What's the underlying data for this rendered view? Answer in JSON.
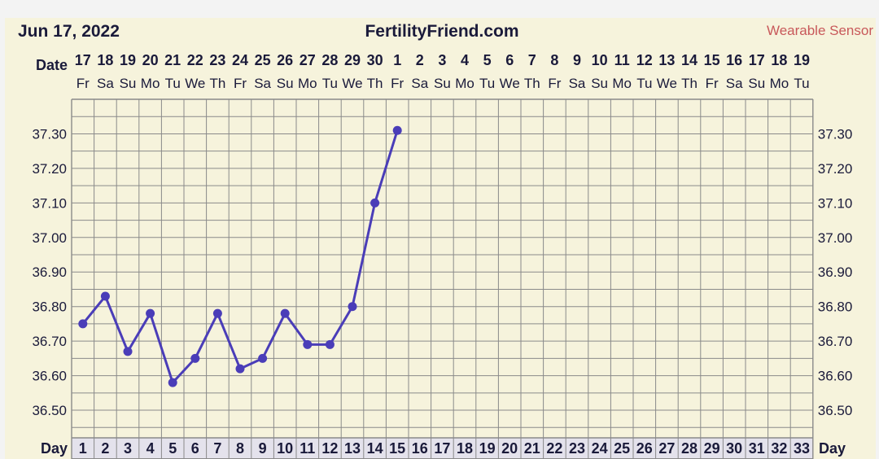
{
  "header": {
    "date": "Jun 17, 2022",
    "site": "FertilityFriend.com",
    "sensor": "Wearable Sensor"
  },
  "labels": {
    "date_row": "Date",
    "day_row_left": "Day",
    "day_row_right": "Day"
  },
  "colors": {
    "background": "#f6f3dc",
    "page": "#f3f3f3",
    "grid": "#8a8a8a",
    "line": "#4a3db8",
    "text": "#1a1a3a",
    "sensor": "#c8585a",
    "day_cell": "#e4e2ec"
  },
  "chart_data": {
    "type": "line",
    "dates": [
      "17",
      "18",
      "19",
      "20",
      "21",
      "22",
      "23",
      "24",
      "25",
      "26",
      "27",
      "28",
      "29",
      "30",
      "1",
      "2",
      "3",
      "4",
      "5",
      "6",
      "7",
      "8",
      "9",
      "10",
      "11",
      "12",
      "13",
      "14",
      "15",
      "16",
      "17",
      "18",
      "19"
    ],
    "weekdays": [
      "Fr",
      "Sa",
      "Su",
      "Mo",
      "Tu",
      "We",
      "Th",
      "Fr",
      "Sa",
      "Su",
      "Mo",
      "Tu",
      "We",
      "Th",
      "Fr",
      "Sa",
      "Su",
      "Mo",
      "Tu",
      "We",
      "Th",
      "Fr",
      "Sa",
      "Su",
      "Mo",
      "Tu",
      "We",
      "Th",
      "Fr",
      "Sa",
      "Su",
      "Mo",
      "Tu"
    ],
    "cycle_days": [
      "1",
      "2",
      "3",
      "4",
      "5",
      "6",
      "7",
      "8",
      "9",
      "10",
      "11",
      "12",
      "13",
      "14",
      "15",
      "16",
      "17",
      "18",
      "19",
      "20",
      "21",
      "22",
      "23",
      "24",
      "25",
      "26",
      "27",
      "28",
      "29",
      "30",
      "31",
      "32",
      "33"
    ],
    "y_ticks": [
      "37.30",
      "37.20",
      "37.10",
      "37.00",
      "36.90",
      "36.80",
      "36.70",
      "36.60",
      "36.50"
    ],
    "ylim": [
      36.42,
      37.4
    ],
    "temperatures": [
      36.75,
      36.83,
      36.67,
      36.78,
      36.58,
      36.65,
      36.78,
      36.62,
      36.65,
      36.78,
      36.69,
      36.69,
      36.8,
      37.1,
      37.31
    ],
    "grid": true
  }
}
